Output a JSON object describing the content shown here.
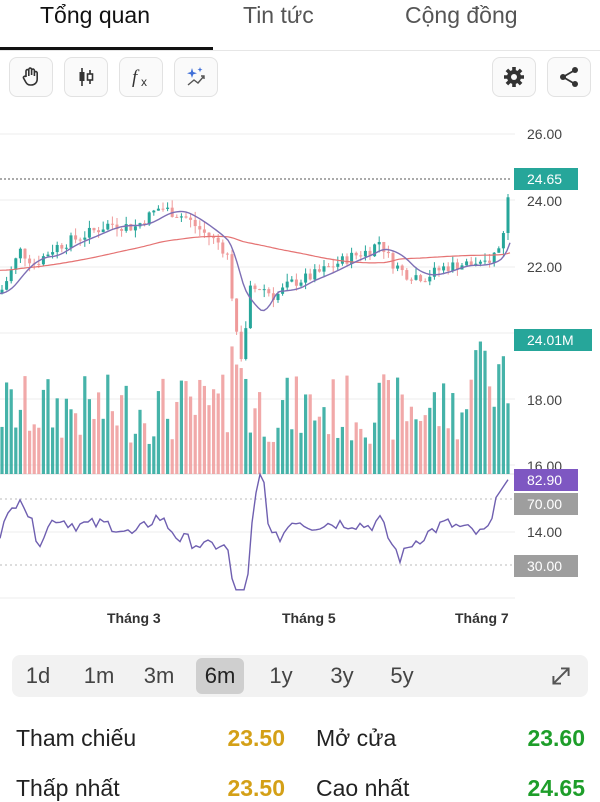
{
  "tabs": [
    "Tổng quan",
    "Tin tức",
    "Cộng đồng"
  ],
  "active_tab": 0,
  "toolbar": {
    "left_icons": [
      "hand-icon",
      "candlestick-icon",
      "fx-icon",
      "sparkle-icon"
    ],
    "right_icons": [
      "gear-icon",
      "share-icon"
    ]
  },
  "chart": {
    "price_ticks": [
      "26.00",
      "24.00",
      "22.00",
      "18.00",
      "16.00",
      "14.00"
    ],
    "last_price": "24.65",
    "last_volume": "24.01M",
    "indicator_value": "82.90",
    "indicator_upper": "70.00",
    "indicator_lower": "30.00",
    "months": [
      "Tháng 3",
      "Tháng 5",
      "Tháng 7"
    ],
    "colors": {
      "up": "#26a69a",
      "down": "#ef9a9a",
      "ma": "#7e6fb5",
      "ma_long": "#e57373",
      "indicator_badge": "#7e57c2",
      "gray_badge": "#9e9e9e"
    }
  },
  "ranges": [
    "1d",
    "1m",
    "3m",
    "6m",
    "1y",
    "3y",
    "5y"
  ],
  "active_range": "6m",
  "stats": [
    {
      "label": "Tham chiếu",
      "value": "23.50",
      "color": "#d4a017"
    },
    {
      "label": "Mở cửa",
      "value": "23.60",
      "color": "#1e9e2a"
    },
    {
      "label": "Thấp nhất",
      "value": "23.50",
      "color": "#d4a017"
    },
    {
      "label": "Cao nhất",
      "value": "24.65",
      "color": "#1e9e2a"
    }
  ]
}
